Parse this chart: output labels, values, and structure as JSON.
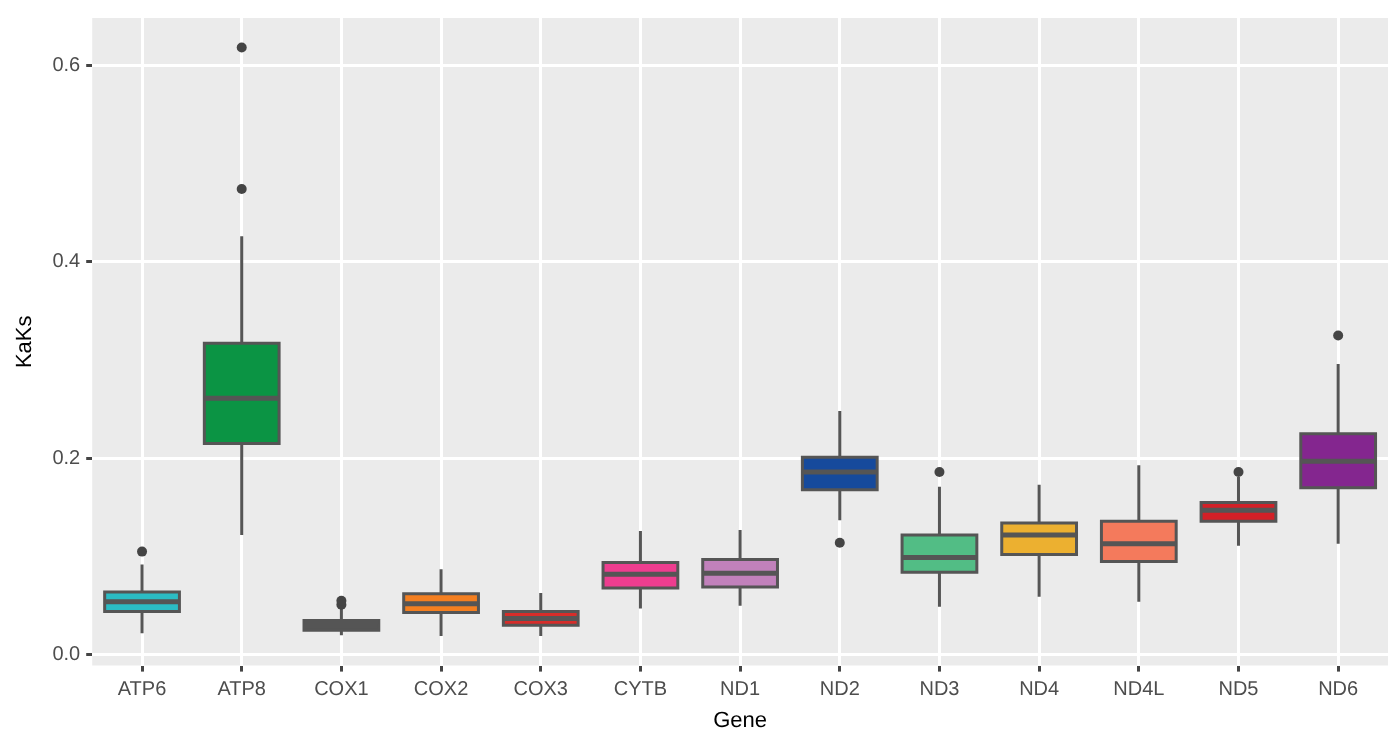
{
  "chart_data": {
    "type": "box",
    "xlabel": "Gene",
    "ylabel": "KaKs",
    "categories": [
      "ATP6",
      "ATP8",
      "COX1",
      "COX2",
      "COX3",
      "CYTB",
      "ND1",
      "ND2",
      "ND3",
      "ND4",
      "ND4L",
      "ND5",
      "ND6"
    ],
    "colors": [
      "#2bbcc4",
      "#0b9444",
      "#555555",
      "#f47f20",
      "#d62d2a",
      "#ee3d8f",
      "#c181bb",
      "#164a9c",
      "#52bd85",
      "#ecb030",
      "#f47a5c",
      "#d32027",
      "#84268f"
    ],
    "boxes": [
      {
        "low": 0.022,
        "q1": 0.044,
        "median": 0.054,
        "q3": 0.064,
        "high": 0.092,
        "outliers": [
          0.105
        ]
      },
      {
        "low": 0.122,
        "q1": 0.215,
        "median": 0.261,
        "q3": 0.317,
        "high": 0.426,
        "outliers": [
          0.474,
          0.618
        ]
      },
      {
        "low": 0.02,
        "q1": 0.025,
        "median": 0.034,
        "q3": 0.035,
        "high": 0.049,
        "outliers": [
          0.051,
          0.055
        ]
      },
      {
        "low": 0.019,
        "q1": 0.043,
        "median": 0.052,
        "q3": 0.062,
        "high": 0.087
      },
      {
        "low": 0.019,
        "q1": 0.03,
        "median": 0.037,
        "q3": 0.044,
        "high": 0.063
      },
      {
        "low": 0.047,
        "q1": 0.068,
        "median": 0.082,
        "q3": 0.094,
        "high": 0.126
      },
      {
        "low": 0.05,
        "q1": 0.069,
        "median": 0.083,
        "q3": 0.097,
        "high": 0.127
      },
      {
        "low": 0.137,
        "q1": 0.168,
        "median": 0.186,
        "q3": 0.201,
        "high": 0.248,
        "outliers": [
          0.114
        ]
      },
      {
        "low": 0.049,
        "q1": 0.084,
        "median": 0.099,
        "q3": 0.122,
        "high": 0.171,
        "outliers": [
          0.186
        ]
      },
      {
        "low": 0.059,
        "q1": 0.102,
        "median": 0.122,
        "q3": 0.134,
        "high": 0.173
      },
      {
        "low": 0.054,
        "q1": 0.095,
        "median": 0.113,
        "q3": 0.136,
        "high": 0.193
      },
      {
        "low": 0.111,
        "q1": 0.136,
        "median": 0.147,
        "q3": 0.155,
        "high": 0.181,
        "outliers": [
          0.186
        ]
      },
      {
        "low": 0.113,
        "q1": 0.17,
        "median": 0.197,
        "q3": 0.225,
        "high": 0.296,
        "outliers": [
          0.325
        ]
      }
    ],
    "ylim": [
      -0.011,
      0.648
    ],
    "yticks": [
      {
        "value": 0,
        "label": "0.0"
      },
      {
        "value": 0.2,
        "label": "0.2"
      },
      {
        "value": 0.4,
        "label": "0.4"
      },
      {
        "value": 0.6,
        "label": "0.6"
      }
    ],
    "grid": true
  }
}
